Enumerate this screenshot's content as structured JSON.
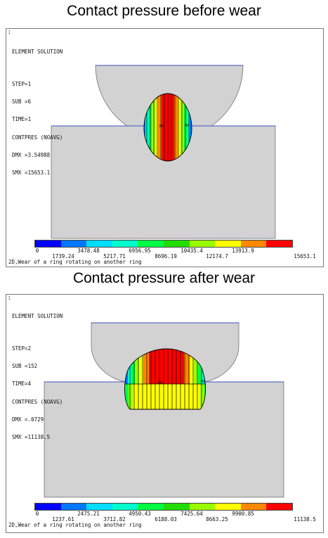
{
  "panels": [
    {
      "title": "Contact pressure before wear",
      "index": "1",
      "info": [
        "ELEMENT SOLUTION",
        "",
        "STEP=1",
        "SUB =6",
        "TIME=1",
        "CONTPRES (NOAVG)",
        "DMX =3.54988",
        "SMX =15653.1"
      ],
      "mn_mark": "MN",
      "mx_mark": "MX",
      "ticks_top": [
        "0",
        "3478.48",
        "6956.95",
        "10435.4",
        "13913.9"
      ],
      "ticks_bottom": [
        "1739.24",
        "5217.71",
        "8696.19",
        "12174.7",
        "15653.1"
      ],
      "caption": "2D,Wear of a ring rotating on another ring"
    },
    {
      "title": "Contact pressure after wear",
      "index": "1",
      "info": [
        "ELEMENT SOLUTION",
        "",
        "STEP=2",
        "SUB =152",
        "TIME=4",
        "CONTPRES (NOAVG)",
        "DMX =.0729",
        "SMX =11138.5"
      ],
      "mn_mark": "MN",
      "mx_mark": "MX",
      "ticks_top": [
        "0",
        "2475.21",
        "4950.43",
        "7425.64",
        "9900.85"
      ],
      "ticks_bottom": [
        "1237.61",
        "3712.82",
        "6188.03",
        "8663.25",
        "11138.5"
      ],
      "caption": "2D,Wear of a ring rotating on another ring"
    }
  ],
  "colors": {
    "legend": [
      "#0000ff",
      "#0077ff",
      "#00ddff",
      "#00ffcc",
      "#00ff44",
      "#22dd00",
      "#99ff00",
      "#ffff00",
      "#ff8800",
      "#ff0000"
    ],
    "geometry_fill": "#d2d2d2",
    "edge_line": "#3a50c8"
  }
}
